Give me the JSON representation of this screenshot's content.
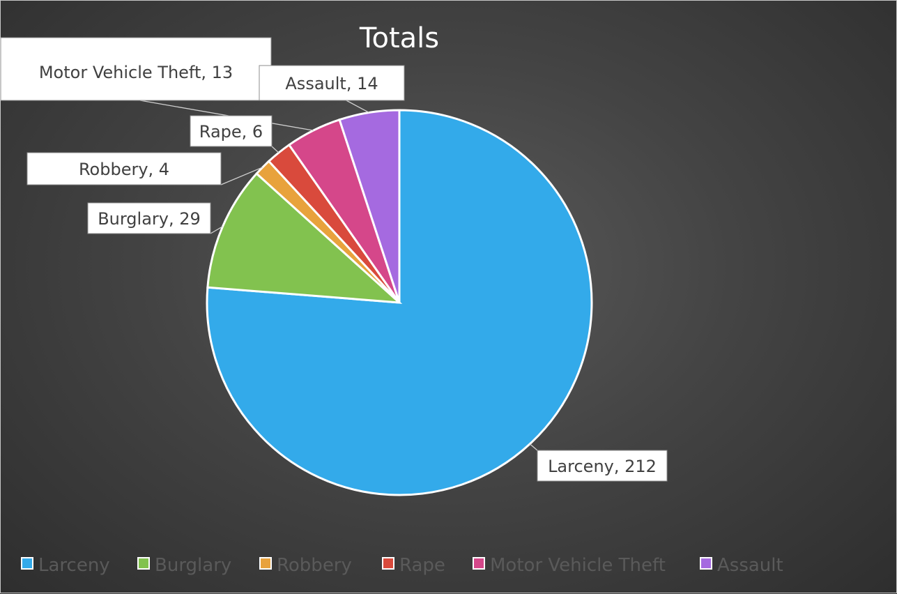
{
  "chart_data": {
    "type": "pie",
    "title": "Totals",
    "categories": [
      "Larceny",
      "Burglary",
      "Robbery",
      "Rape",
      "Motor Vehicle Theft",
      "Assault"
    ],
    "values": [
      212,
      29,
      4,
      6,
      13,
      14
    ],
    "colors": [
      "#33aaea",
      "#82c24f",
      "#e8a23c",
      "#d94a3c",
      "#d5478a",
      "#a56ae0"
    ],
    "data_labels": [
      "Larceny, 212",
      "Burglary, 29",
      "Robbery, 4",
      "Rape, 6",
      "Motor Vehicle Theft, 13",
      "Assault, 14"
    ],
    "legend": {
      "placement": "bottom-left",
      "entries": [
        "Larceny",
        "Burglary",
        "Robbery",
        "Rape",
        "Motor Vehicle Theft",
        "Assault"
      ]
    }
  }
}
